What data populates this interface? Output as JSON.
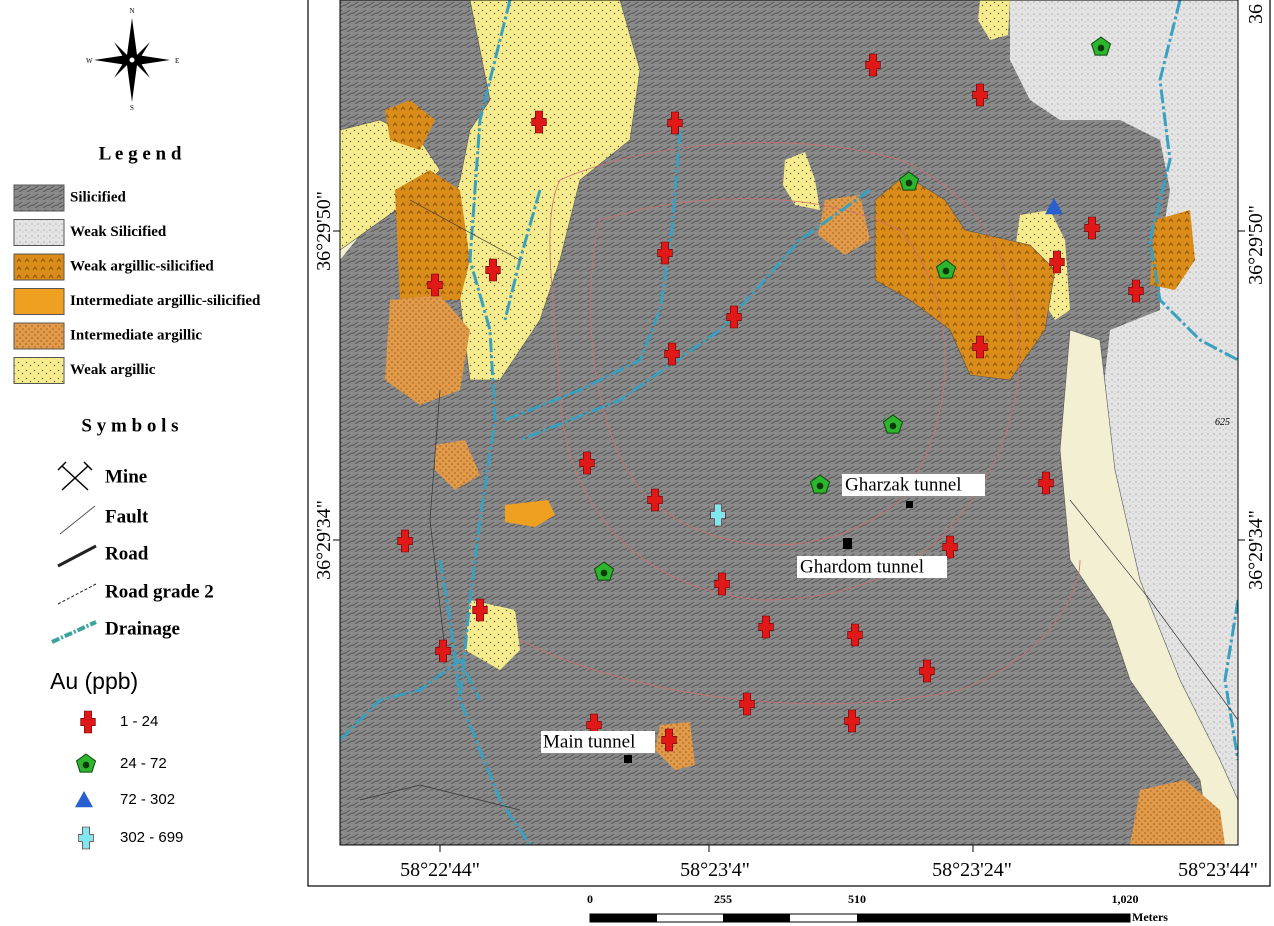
{
  "compass": {
    "north": "N",
    "east": "E",
    "south": "S",
    "west": "W"
  },
  "legend": {
    "title": "L e g e n d",
    "items": [
      "Silicified",
      "Weak Silicified",
      "Weak argillic-silicified",
      "Intermediate argillic-silicified",
      "Intermediate argillic",
      "Weak argillic"
    ]
  },
  "symbols": {
    "title": "S y m b o l s",
    "items": [
      "Mine",
      "Fault",
      "Road",
      "Road grade 2",
      "Drainage"
    ]
  },
  "au": {
    "title": "Au (ppb)",
    "classes": [
      "1 - 24",
      "24 - 72",
      "72 - 302",
      "302 - 699"
    ]
  },
  "map": {
    "labels": [
      "Gharzak tunnel",
      "Ghardom tunnel",
      "Main tunnel"
    ],
    "contour_label": "625",
    "bottom_coords": [
      "58°22'44\"",
      "58°23'4\"",
      "58°23'24\"",
      "58°23'44\""
    ],
    "left_coords": [
      "36°29'50\"",
      "36°29'34\""
    ],
    "right_coords": [
      "36°29'50\"",
      "36°29'34\"",
      "36"
    ]
  },
  "scale_bar": {
    "ticks": [
      "0",
      "255",
      "510",
      "1,020"
    ],
    "unit": "Meters"
  }
}
